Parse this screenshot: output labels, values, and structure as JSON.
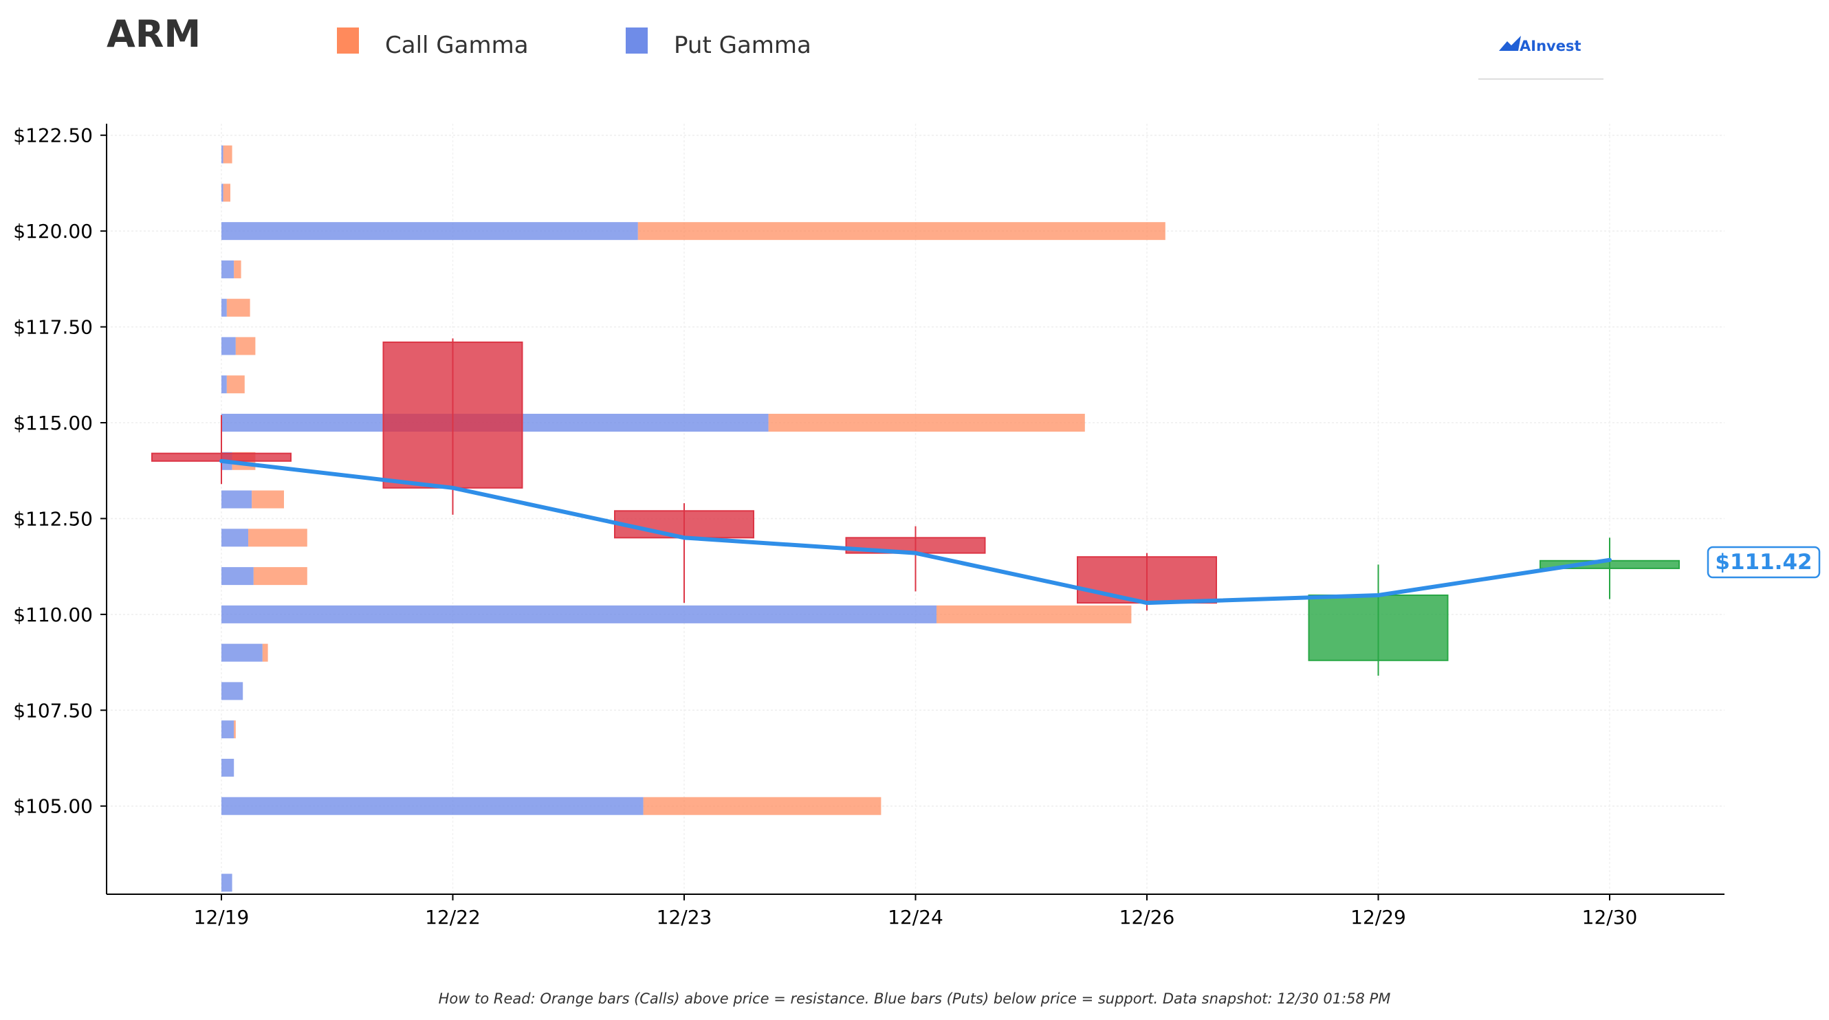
{
  "header": {
    "ticker": "ARM",
    "brand": "AInvest"
  },
  "legend": {
    "call_label": "Call Gamma",
    "put_label": "Put Gamma"
  },
  "footnote": "How to Read: Orange bars (Calls) above price = resistance. Blue bars (Puts) below price = support. Data snapshot: 12/30 01:58 PM",
  "colors": {
    "call": "#ff8a5c",
    "put": "#6f8ce8",
    "bearish": "#dc3545",
    "bullish": "#28a745",
    "price_line": "#2f8ee8",
    "title": "#333333"
  },
  "chart_data": {
    "type": "candlestick",
    "categories": [
      "12/19",
      "12/22",
      "12/23",
      "12/24",
      "12/26",
      "12/29",
      "12/30"
    ],
    "ylim": [
      102.7,
      122.8
    ],
    "y_ticks": [
      105.0,
      107.5,
      110.0,
      112.5,
      115.0,
      117.5,
      120.0,
      122.5
    ],
    "y_tick_labels": [
      "$105.00",
      "$107.50",
      "$110.00",
      "$112.50",
      "$115.00",
      "$117.50",
      "$120.00",
      "$122.50"
    ],
    "grid": true,
    "candles": [
      {
        "date": "12/19",
        "open": 114.2,
        "high": 115.2,
        "low": 113.4,
        "close": 114.0
      },
      {
        "date": "12/22",
        "open": 117.1,
        "high": 117.2,
        "low": 112.6,
        "close": 113.3
      },
      {
        "date": "12/23",
        "open": 112.7,
        "high": 112.9,
        "low": 110.3,
        "close": 112.0
      },
      {
        "date": "12/24",
        "open": 112.0,
        "high": 112.3,
        "low": 110.6,
        "close": 111.6
      },
      {
        "date": "12/26",
        "open": 111.5,
        "high": 111.6,
        "low": 110.1,
        "close": 110.3
      },
      {
        "date": "12/29",
        "open": 108.8,
        "high": 111.3,
        "low": 108.4,
        "close": 110.5
      },
      {
        "date": "12/30",
        "open": 111.2,
        "high": 112.0,
        "low": 110.4,
        "close": 111.4
      }
    ],
    "price_line": {
      "label": "$111.42",
      "values": [
        114.0,
        113.3,
        112.0,
        111.6,
        110.3,
        110.5,
        111.42
      ]
    },
    "gamma": {
      "strikes": [
        103.0,
        105.0,
        106.0,
        107.0,
        108.0,
        109.0,
        110.0,
        111.0,
        112.0,
        113.0,
        114.0,
        115.0,
        116.0,
        117.0,
        118.0,
        119.0,
        120.0,
        121.0,
        122.0
      ],
      "put": [
        0.06,
        2.36,
        0.07,
        0.07,
        0.12,
        0.23,
        4.0,
        0.18,
        0.15,
        0.17,
        0.06,
        3.06,
        0.03,
        0.08,
        0.03,
        0.07,
        2.33,
        0.01,
        0.01
      ],
      "call": [
        0.0,
        1.33,
        0.0,
        0.01,
        0.0,
        0.03,
        1.09,
        0.3,
        0.33,
        0.18,
        0.13,
        1.77,
        0.1,
        0.11,
        0.13,
        0.04,
        2.95,
        0.04,
        0.05
      ]
    }
  }
}
